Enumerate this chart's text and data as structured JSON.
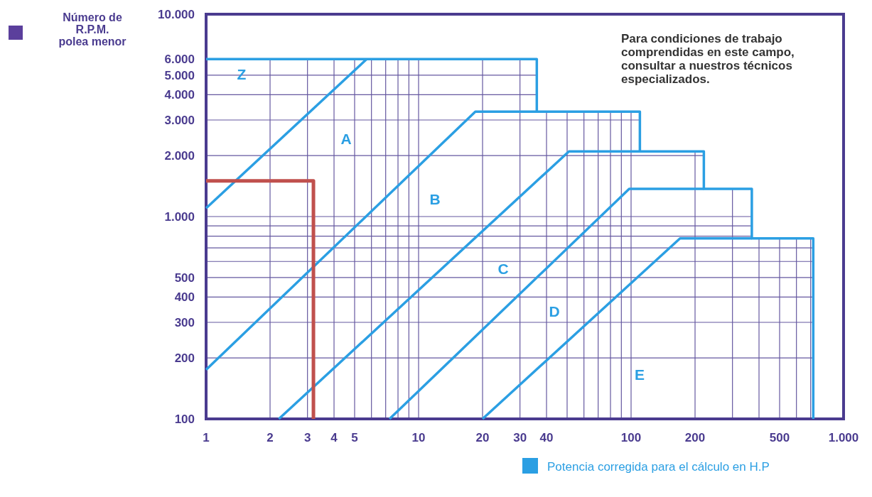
{
  "chart_data": {
    "type": "line",
    "xlabel": "Potencia corregida para el cálculo en H.P",
    "ylabel": "Número de\nR.P.M.\npolea menor",
    "log": "xy",
    "grid": true,
    "xlim": [
      1,
      1000
    ],
    "ylim": [
      100,
      10000
    ],
    "xticks": [
      1,
      2,
      3,
      4,
      5,
      {
        "value": 6,
        "label": null
      },
      {
        "value": 7,
        "label": null
      },
      {
        "value": 8,
        "label": null
      },
      {
        "value": 9,
        "label": null
      },
      10,
      20,
      30,
      40,
      {
        "value": 50,
        "label": null
      },
      {
        "value": 60,
        "label": null
      },
      {
        "value": 70,
        "label": null
      },
      {
        "value": 80,
        "label": null
      },
      {
        "value": 90,
        "label": null
      },
      100,
      200,
      {
        "value": 300,
        "label": null
      },
      {
        "value": 400,
        "label": null
      },
      500,
      {
        "value": 600,
        "label": null
      },
      {
        "value": 700,
        "label": null
      },
      {
        "value": 1000,
        "label": "1.000"
      }
    ],
    "yticks": [
      100,
      200,
      300,
      400,
      500,
      {
        "value": 600,
        "label": null
      },
      {
        "value": 700,
        "label": null
      },
      {
        "value": 800,
        "label": null
      },
      {
        "value": 900,
        "label": null
      },
      {
        "value": 1000,
        "label": "1.000"
      },
      {
        "value": 2000,
        "label": "2.000"
      },
      {
        "value": 3000,
        "label": "3.000"
      },
      {
        "value": 4000,
        "label": "4.000"
      },
      {
        "value": 5000,
        "label": "5.000"
      },
      {
        "value": 6000,
        "label": "6.000"
      },
      {
        "value": 10000,
        "label": "10.000"
      }
    ],
    "series": [
      {
        "color": "#2b9fe3",
        "x": [
          1,
          36,
          36,
          110,
          110,
          220,
          220,
          370,
          370,
          720,
          720
        ],
        "values": [
          6000,
          6000,
          3300,
          3300,
          2100,
          2100,
          1370,
          1370,
          780,
          780,
          100
        ]
      },
      {
        "color": "#2b9fe3",
        "x": [
          1,
          5.7
        ],
        "values": [
          1100,
          6000
        ]
      },
      {
        "color": "#2b9fe3",
        "x": [
          1,
          18.5,
          36
        ],
        "values": [
          175,
          3300,
          3300
        ]
      },
      {
        "color": "#2b9fe3",
        "x": [
          2.2,
          51,
          110
        ],
        "values": [
          100,
          2100,
          2100
        ]
      },
      {
        "color": "#2b9fe3",
        "x": [
          7.3,
          98,
          220
        ],
        "values": [
          100,
          1370,
          1370
        ]
      },
      {
        "color": "#2b9fe3",
        "x": [
          20,
          170,
          370
        ],
        "values": [
          100,
          780,
          780
        ]
      },
      {
        "color": "#c0504d",
        "x": [
          1,
          3.2,
          3.2
        ],
        "values": [
          1500,
          1500,
          100
        ]
      }
    ],
    "annotations": [
      "Z",
      "A",
      "B",
      "C",
      "D",
      "E",
      "Para condiciones de trabajo\ncomprendidas en este campo,\nconsultar a nuestros técnicos\nespecializados."
    ]
  }
}
